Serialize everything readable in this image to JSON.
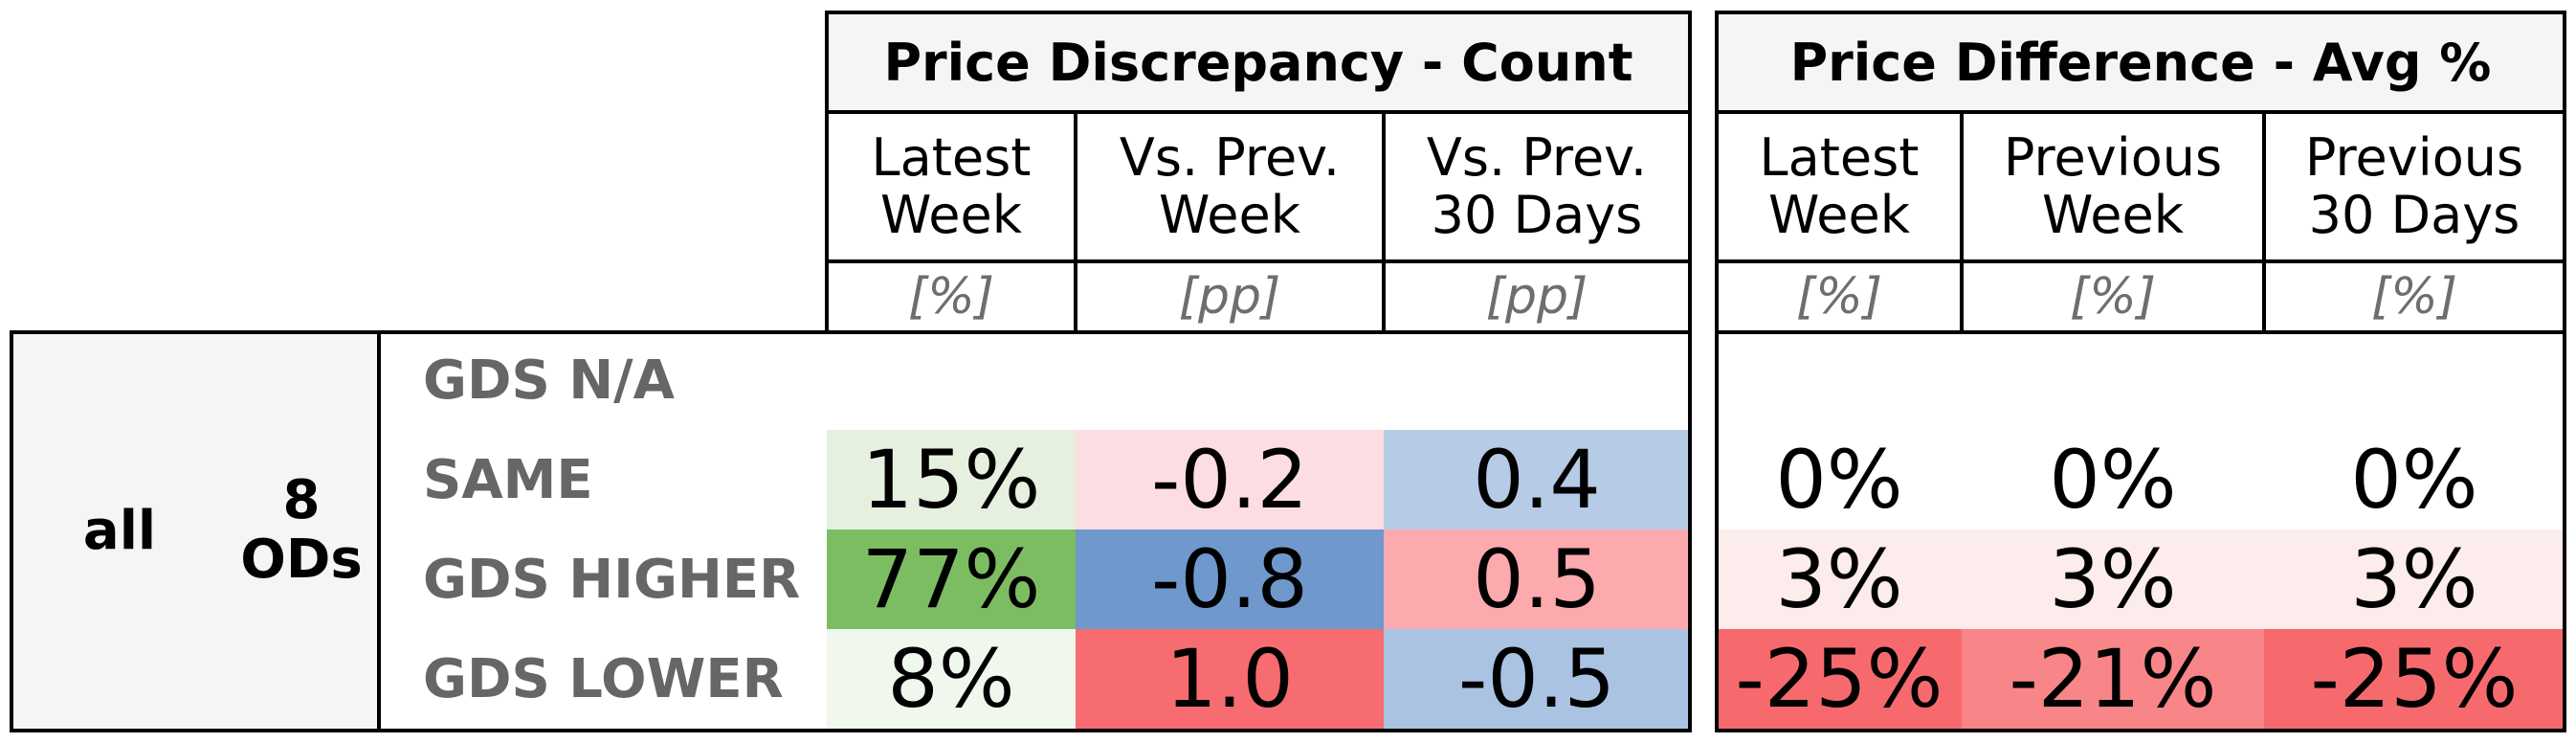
{
  "group1": {
    "title": "Price Discrepancy - Count",
    "columns": [
      {
        "label": "Latest\nWeek",
        "unit": "[%]"
      },
      {
        "label": "Vs. Prev.\nWeek",
        "unit": "[pp]"
      },
      {
        "label": "Vs. Prev.\n30 Days",
        "unit": "[pp]"
      }
    ]
  },
  "group2": {
    "title": "Price Difference - Avg %",
    "columns": [
      {
        "label": "Latest\nWeek",
        "unit": "[%]"
      },
      {
        "label": "Previous\nWeek",
        "unit": "[%]"
      },
      {
        "label": "Previous\n30 Days",
        "unit": "[%]"
      }
    ]
  },
  "segment": {
    "name": "all",
    "od_count": "8",
    "od_label": "ODs"
  },
  "rows": [
    {
      "label": "GDS N/A",
      "count": [
        "",
        "",
        ""
      ],
      "count_colors": [
        "#ffffff",
        "#ffffff",
        "#ffffff"
      ],
      "avg": [
        "",
        "",
        ""
      ],
      "avg_colors": [
        "#ffffff",
        "#ffffff",
        "#ffffff"
      ]
    },
    {
      "label": "SAME",
      "count": [
        "15%",
        "-0.2",
        "0.4"
      ],
      "count_colors": [
        "#e5f0de",
        "#fcdde1",
        "#b6cbe6"
      ],
      "avg": [
        "0%",
        "0%",
        "0%"
      ],
      "avg_colors": [
        "#ffffff",
        "#ffffff",
        "#ffffff"
      ]
    },
    {
      "label": "GDS HIGHER",
      "count": [
        "77%",
        "-0.8",
        "0.5"
      ],
      "count_colors": [
        "#7dbd62",
        "#6f98cd",
        "#fcaaad"
      ],
      "avg": [
        "3%",
        "3%",
        "3%"
      ],
      "avg_colors": [
        "#fdecec",
        "#fdecec",
        "#fdecec"
      ]
    },
    {
      "label": "GDS LOWER",
      "count": [
        "8%",
        "1.0",
        "-0.5"
      ],
      "count_colors": [
        "#f0f7ec",
        "#f76c70",
        "#aac3e3"
      ],
      "avg": [
        "-25%",
        "-21%",
        "-25%"
      ],
      "avg_colors": [
        "#f66a6e",
        "#f88587",
        "#f66a6e"
      ]
    }
  ]
}
